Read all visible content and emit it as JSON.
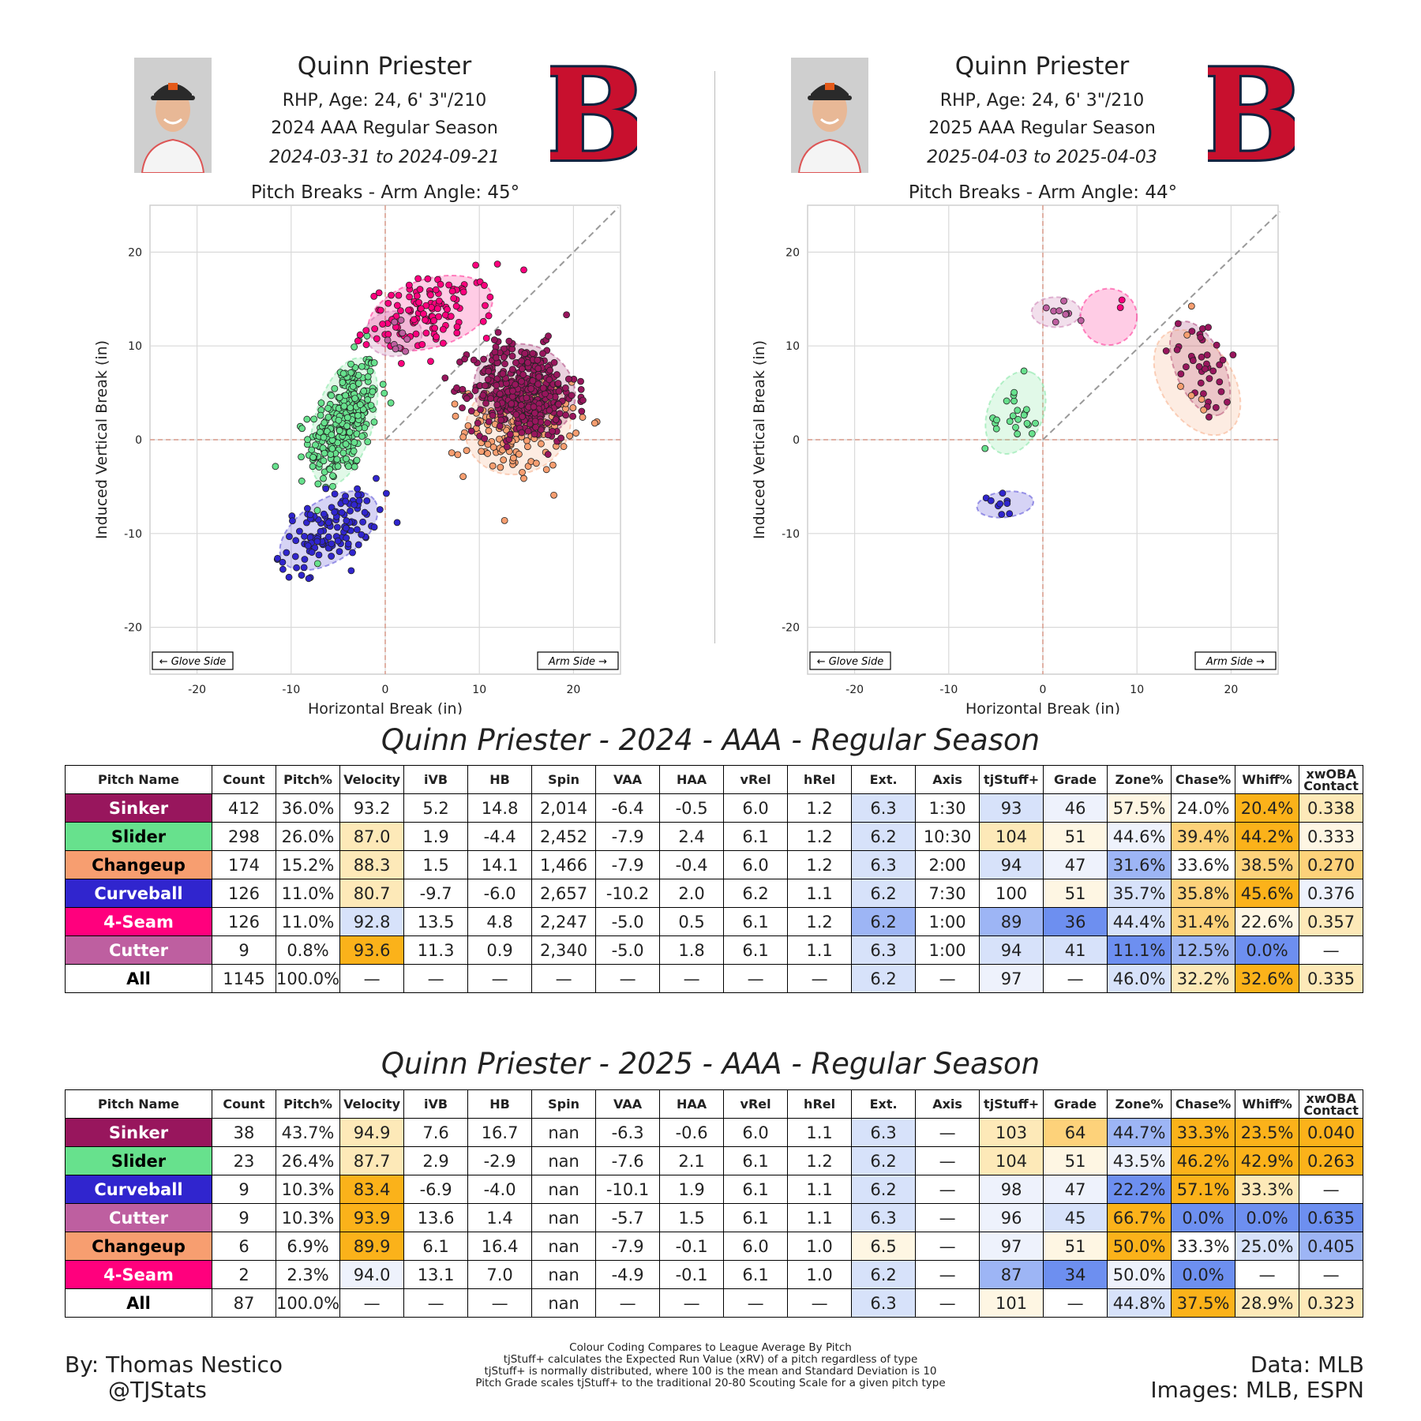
{
  "panels": [
    {
      "name": "Quinn Priester",
      "bio": "RHP, Age: 24, 6' 3\"/210",
      "season": "2024 AAA Regular Season",
      "dates": "2024-03-31 to 2024-09-21",
      "plot_title": "Pitch Breaks - Arm Angle: 45°"
    },
    {
      "name": "Quinn Priester",
      "bio": "RHP, Age: 24, 6' 3\"/210",
      "season": "2025 AAA Regular Season",
      "dates": "2025-04-03 to 2025-04-03",
      "plot_title": "Pitch Breaks - Arm Angle: 44°"
    }
  ],
  "pitch_colors": {
    "Sinker": "#98165d",
    "Slider": "#67e18d",
    "Changeup": "#f79e70",
    "Curveball": "#3025ce",
    "4-Seam": "#ff007d",
    "Cutter": "#be5fa0",
    "All": "#ffffff"
  },
  "pitch_text_colors": {
    "Sinker": "#ffffff",
    "Slider": "#000000",
    "Changeup": "#000000",
    "Curveball": "#ffffff",
    "4-Seam": "#ffffff",
    "Cutter": "#ffffff",
    "All": "#000000"
  },
  "cell_colors": {
    "deep_blue": "#6d8ff0",
    "blue": "#9db5f5",
    "light_blue": "#d7e2fa",
    "pale_blue": "#eef2fc",
    "neutral": "#ffffff",
    "pale_orange": "#fef6e3",
    "light_orange": "#fde9b8",
    "orange": "#fdd27a",
    "deep_orange": "#fbb21a"
  },
  "chart_data": [
    {
      "type": "scatter",
      "title": "Pitch Breaks - Arm Angle: 45°",
      "xlabel": "Horizontal Break (in)",
      "ylabel": "Induced Vertical Break (in)",
      "xlim": [
        -25,
        25
      ],
      "ylim": [
        -25,
        25
      ],
      "xticks": [
        -20,
        -10,
        0,
        10,
        20
      ],
      "yticks": [
        -20,
        -10,
        0,
        10,
        20
      ],
      "grid": true,
      "arm_angle_deg": 45,
      "side_labels": {
        "left": "← Glove Side",
        "right": "Arm Side →"
      },
      "series": [
        {
          "name": "Slider",
          "color": "#67e18d",
          "count": 298,
          "hb": -4.4,
          "ivb": 1.9,
          "sd_x": 1.8,
          "sd_y": 3.4,
          "corr": 0.45
        },
        {
          "name": "Curveball",
          "color": "#3025ce",
          "count": 126,
          "hb": -6.0,
          "ivb": -9.7,
          "sd_x": 2.6,
          "sd_y": 2.1,
          "corr": 0.5
        },
        {
          "name": "4-Seam",
          "color": "#ff007d",
          "count": 126,
          "hb": 4.8,
          "ivb": 13.5,
          "sd_x": 3.3,
          "sd_y": 2.0,
          "corr": 0.35
        },
        {
          "name": "Changeup",
          "color": "#f79e70",
          "count": 174,
          "hb": 14.1,
          "ivb": 1.5,
          "sd_x": 2.8,
          "sd_y": 2.6,
          "corr": 0.1
        },
        {
          "name": "Sinker",
          "color": "#98165d",
          "count": 412,
          "hb": 14.8,
          "ivb": 5.2,
          "sd_x": 2.7,
          "sd_y": 2.5,
          "corr": -0.1
        },
        {
          "name": "Cutter",
          "color": "#be5fa0",
          "count": 9,
          "hb": 0.9,
          "ivb": 11.3,
          "sd_x": 1.5,
          "sd_y": 1.2,
          "corr": 0.0
        }
      ]
    },
    {
      "type": "scatter",
      "title": "Pitch Breaks - Arm Angle: 44°",
      "xlabel": "Horizontal Break (in)",
      "ylabel": "Induced Vertical Break (in)",
      "xlim": [
        -25,
        25
      ],
      "ylim": [
        -25,
        25
      ],
      "xticks": [
        -20,
        -10,
        0,
        10,
        20
      ],
      "yticks": [
        -20,
        -10,
        0,
        10,
        20
      ],
      "grid": true,
      "arm_angle_deg": 44,
      "side_labels": {
        "left": "← Glove Side",
        "right": "Arm Side →"
      },
      "series": [
        {
          "name": "Slider",
          "color": "#67e18d",
          "count": 23,
          "hb": -2.9,
          "ivb": 2.9,
          "sd_x": 1.6,
          "sd_y": 2.2,
          "corr": 0.3
        },
        {
          "name": "Curveball",
          "color": "#3025ce",
          "count": 9,
          "hb": -4.0,
          "ivb": -6.9,
          "sd_x": 1.5,
          "sd_y": 0.7,
          "corr": 0.2
        },
        {
          "name": "Cutter",
          "color": "#be5fa0",
          "count": 9,
          "hb": 1.4,
          "ivb": 13.6,
          "sd_x": 1.3,
          "sd_y": 0.8,
          "corr": 0.0
        },
        {
          "name": "Sinker",
          "color": "#98165d",
          "count": 38,
          "hb": 16.7,
          "ivb": 7.6,
          "sd_x": 1.6,
          "sd_y": 2.5,
          "corr": -0.5
        },
        {
          "name": "Changeup",
          "color": "#f79e70",
          "count": 6,
          "hb": 16.4,
          "ivb": 6.1,
          "sd_x": 2.3,
          "sd_y": 2.8,
          "corr": -0.4
        },
        {
          "name": "4-Seam",
          "color": "#ff007d",
          "count": 2,
          "hb": 7.0,
          "ivb": 13.1,
          "sd_x": 1.5,
          "sd_y": 1.5,
          "corr": 0.0
        }
      ]
    }
  ],
  "table_headers": [
    "Pitch Name",
    "Count",
    "Pitch%",
    "Velocity",
    "iVB",
    "HB",
    "Spin",
    "VAA",
    "HAA",
    "vRel",
    "hRel",
    "Ext.",
    "Axis",
    "tjStuff+",
    "Grade",
    "Zone%",
    "Chase%",
    "Whiff%",
    "xwOBA Contact"
  ],
  "tables": [
    {
      "title": "Quinn Priester - 2024 - AAA - Regular Season",
      "rows": [
        {
          "pitch": "Sinker",
          "cells": [
            "412",
            "36.0%",
            "93.2",
            "5.2",
            "14.8",
            "2,014",
            "-6.4",
            "-0.5",
            "6.0",
            "1.2",
            "6.3",
            "1:30",
            "93",
            "46",
            "57.5%",
            "24.0%",
            "20.4%",
            "0.338"
          ],
          "shade": [
            "",
            "",
            "",
            "",
            "",
            "",
            "",
            "",
            "",
            "",
            "light_blue",
            "",
            "light_blue",
            "pale_blue",
            "pale_orange",
            "",
            "deep_orange",
            "light_orange"
          ]
        },
        {
          "pitch": "Slider",
          "cells": [
            "298",
            "26.0%",
            "87.0",
            "1.9",
            "-4.4",
            "2,452",
            "-7.9",
            "2.4",
            "6.1",
            "1.2",
            "6.2",
            "10:30",
            "104",
            "51",
            "44.6%",
            "39.4%",
            "44.2%",
            "0.333"
          ],
          "shade": [
            "",
            "",
            "light_orange",
            "",
            "",
            "",
            "",
            "",
            "",
            "",
            "light_blue",
            "",
            "light_orange",
            "pale_orange",
            "pale_blue",
            "orange",
            "deep_orange",
            "pale_orange"
          ]
        },
        {
          "pitch": "Changeup",
          "cells": [
            "174",
            "15.2%",
            "88.3",
            "1.5",
            "14.1",
            "1,466",
            "-7.9",
            "-0.4",
            "6.0",
            "1.2",
            "6.3",
            "2:00",
            "94",
            "47",
            "31.6%",
            "33.6%",
            "38.5%",
            "0.270"
          ],
          "shade": [
            "",
            "",
            "light_orange",
            "",
            "",
            "",
            "",
            "",
            "",
            "",
            "light_blue",
            "",
            "light_blue",
            "pale_blue",
            "blue",
            "",
            "orange",
            "orange"
          ]
        },
        {
          "pitch": "Curveball",
          "cells": [
            "126",
            "11.0%",
            "80.7",
            "-9.7",
            "-6.0",
            "2,657",
            "-10.2",
            "2.0",
            "6.2",
            "1.1",
            "6.2",
            "7:30",
            "100",
            "51",
            "35.7%",
            "35.8%",
            "45.6%",
            "0.376"
          ],
          "shade": [
            "",
            "",
            "light_orange",
            "",
            "",
            "",
            "",
            "",
            "",
            "",
            "light_blue",
            "",
            "",
            "pale_orange",
            "light_blue",
            "orange",
            "deep_orange",
            "pale_blue"
          ]
        },
        {
          "pitch": "4-Seam",
          "cells": [
            "126",
            "11.0%",
            "92.8",
            "13.5",
            "4.8",
            "2,247",
            "-5.0",
            "0.5",
            "6.1",
            "1.2",
            "6.2",
            "1:00",
            "89",
            "36",
            "44.4%",
            "31.4%",
            "22.6%",
            "0.357"
          ],
          "shade": [
            "",
            "",
            "light_blue",
            "",
            "",
            "",
            "",
            "",
            "",
            "",
            "blue",
            "",
            "blue",
            "deep_blue",
            "light_blue",
            "orange",
            "pale_orange",
            "light_orange"
          ]
        },
        {
          "pitch": "Cutter",
          "cells": [
            "9",
            "0.8%",
            "93.6",
            "11.3",
            "0.9",
            "2,340",
            "-5.0",
            "1.8",
            "6.1",
            "1.1",
            "6.3",
            "1:00",
            "94",
            "41",
            "11.1%",
            "12.5%",
            "0.0%",
            "—"
          ],
          "shade": [
            "",
            "",
            "deep_orange",
            "",
            "",
            "",
            "",
            "",
            "",
            "",
            "light_blue",
            "",
            "light_blue",
            "light_blue",
            "deep_blue",
            "blue",
            "deep_blue",
            ""
          ]
        },
        {
          "pitch": "All",
          "cells": [
            "1145",
            "100.0%",
            "—",
            "—",
            "—",
            "—",
            "—",
            "—",
            "—",
            "—",
            "6.2",
            "—",
            "97",
            "—",
            "46.0%",
            "32.2%",
            "32.6%",
            "0.335"
          ],
          "shade": [
            "",
            "",
            "",
            "",
            "",
            "",
            "",
            "",
            "",
            "",
            "light_blue",
            "",
            "pale_blue",
            "",
            "light_blue",
            "light_orange",
            "deep_orange",
            "light_orange"
          ]
        }
      ]
    },
    {
      "title": "Quinn Priester - 2025 - AAA - Regular Season",
      "rows": [
        {
          "pitch": "Sinker",
          "cells": [
            "38",
            "43.7%",
            "94.9",
            "7.6",
            "16.7",
            "nan",
            "-6.3",
            "-0.6",
            "6.0",
            "1.1",
            "6.3",
            "—",
            "103",
            "64",
            "44.7%",
            "33.3%",
            "23.5%",
            "0.040"
          ],
          "shade": [
            "",
            "",
            "light_orange",
            "",
            "",
            "",
            "",
            "",
            "",
            "",
            "light_blue",
            "",
            "light_orange",
            "orange",
            "blue",
            "deep_orange",
            "deep_orange",
            "deep_orange"
          ]
        },
        {
          "pitch": "Slider",
          "cells": [
            "23",
            "26.4%",
            "87.7",
            "2.9",
            "-2.9",
            "nan",
            "-7.6",
            "2.1",
            "6.1",
            "1.2",
            "6.2",
            "—",
            "104",
            "51",
            "43.5%",
            "46.2%",
            "42.9%",
            "0.263"
          ],
          "shade": [
            "",
            "",
            "light_orange",
            "",
            "",
            "",
            "",
            "",
            "",
            "",
            "light_blue",
            "",
            "light_orange",
            "pale_orange",
            "pale_blue",
            "deep_orange",
            "deep_orange",
            "deep_orange"
          ]
        },
        {
          "pitch": "Curveball",
          "cells": [
            "9",
            "10.3%",
            "83.4",
            "-6.9",
            "-4.0",
            "nan",
            "-10.1",
            "1.9",
            "6.1",
            "1.1",
            "6.2",
            "—",
            "98",
            "47",
            "22.2%",
            "57.1%",
            "33.3%",
            "—"
          ],
          "shade": [
            "",
            "",
            "deep_orange",
            "",
            "",
            "",
            "",
            "",
            "",
            "",
            "light_blue",
            "",
            "pale_blue",
            "pale_blue",
            "deep_blue",
            "deep_orange",
            "light_orange",
            ""
          ]
        },
        {
          "pitch": "Cutter",
          "cells": [
            "9",
            "10.3%",
            "93.9",
            "13.6",
            "1.4",
            "nan",
            "-5.7",
            "1.5",
            "6.1",
            "1.1",
            "6.3",
            "—",
            "96",
            "45",
            "66.7%",
            "0.0%",
            "0.0%",
            "0.635"
          ],
          "shade": [
            "",
            "",
            "deep_orange",
            "",
            "",
            "",
            "",
            "",
            "",
            "",
            "light_blue",
            "",
            "pale_blue",
            "light_blue",
            "deep_orange",
            "deep_blue",
            "deep_blue",
            "deep_blue"
          ]
        },
        {
          "pitch": "Changeup",
          "cells": [
            "6",
            "6.9%",
            "89.9",
            "6.1",
            "16.4",
            "nan",
            "-7.9",
            "-0.1",
            "6.0",
            "1.0",
            "6.5",
            "—",
            "97",
            "51",
            "50.0%",
            "33.3%",
            "25.0%",
            "0.405"
          ],
          "shade": [
            "",
            "",
            "deep_orange",
            "",
            "",
            "",
            "",
            "",
            "",
            "",
            "pale_orange",
            "",
            "pale_blue",
            "pale_orange",
            "deep_orange",
            "",
            "light_blue",
            "blue"
          ]
        },
        {
          "pitch": "4-Seam",
          "cells": [
            "2",
            "2.3%",
            "94.0",
            "13.1",
            "7.0",
            "nan",
            "-4.9",
            "-0.1",
            "6.1",
            "1.0",
            "6.2",
            "—",
            "87",
            "34",
            "50.0%",
            "0.0%",
            "—",
            "—"
          ],
          "shade": [
            "",
            "",
            "pale_blue",
            "",
            "",
            "",
            "",
            "",
            "",
            "",
            "light_blue",
            "",
            "blue",
            "deep_blue",
            "pale_blue",
            "deep_blue",
            "",
            ""
          ]
        },
        {
          "pitch": "All",
          "cells": [
            "87",
            "100.0%",
            "—",
            "—",
            "—",
            "nan",
            "—",
            "—",
            "—",
            "—",
            "6.3",
            "—",
            "101",
            "—",
            "44.8%",
            "37.5%",
            "28.9%",
            "0.323"
          ],
          "shade": [
            "",
            "",
            "",
            "",
            "",
            "",
            "",
            "",
            "",
            "",
            "light_blue",
            "",
            "pale_orange",
            "",
            "light_blue",
            "deep_orange",
            "light_orange",
            "light_orange"
          ]
        }
      ]
    }
  ],
  "footer": {
    "author": "By: Thomas Nestico",
    "handle": "@TJStats",
    "data": "Data: MLB",
    "images": "Images: MLB, ESPN",
    "notes": [
      "Colour Coding Compares to League Average By Pitch",
      "tjStuff+ calculates the Expected Run Value (xRV) of a pitch regardless of type",
      "tjStuff+ is normally distributed, where 100 is the mean and Standard Deviation is 10",
      "Pitch Grade scales tjStuff+ to the traditional 20-80 Scouting Scale for a given pitch type"
    ]
  }
}
